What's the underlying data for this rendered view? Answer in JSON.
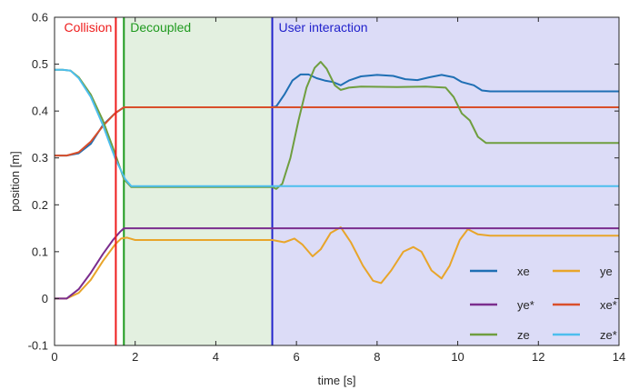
{
  "chart_data": {
    "type": "line",
    "xlabel": "time [s]",
    "ylabel": "position [m]",
    "xlim": [
      0,
      14
    ],
    "ylim": [
      -0.1,
      0.6
    ],
    "xticks": [
      "0",
      "2",
      "4",
      "6",
      "8",
      "10",
      "12",
      "14"
    ],
    "yticks": [
      "-0.1",
      "0",
      "0.1",
      "0.2",
      "0.3",
      "0.4",
      "0.5",
      "0.6"
    ],
    "grid": false,
    "legend_position": "bottom-right",
    "regions": [
      {
        "label": "Decoupled",
        "x0": 1.72,
        "x1": 5.4,
        "fill": "#e3f0e0",
        "line_color": "#1f9a1f"
      },
      {
        "label": "User interaction",
        "x0": 5.4,
        "x1": 14,
        "fill": "#dcdcf7",
        "line_color": "#2222cc"
      }
    ],
    "markers": [
      {
        "label": "Collision",
        "x": 1.52,
        "color": "#ee1c1c"
      }
    ],
    "series": [
      {
        "name": "xe",
        "color": "#1f6fb4",
        "points": [
          [
            0,
            0.305
          ],
          [
            0.3,
            0.305
          ],
          [
            0.6,
            0.31
          ],
          [
            0.9,
            0.33
          ],
          [
            1.2,
            0.37
          ],
          [
            1.5,
            0.395
          ],
          [
            1.72,
            0.408
          ],
          [
            5.4,
            0.408
          ],
          [
            5.5,
            0.41
          ],
          [
            5.7,
            0.435
          ],
          [
            5.9,
            0.465
          ],
          [
            6.1,
            0.478
          ],
          [
            6.3,
            0.478
          ],
          [
            6.5,
            0.47
          ],
          [
            6.7,
            0.465
          ],
          [
            6.9,
            0.462
          ],
          [
            7.1,
            0.455
          ],
          [
            7.3,
            0.465
          ],
          [
            7.6,
            0.474
          ],
          [
            8.0,
            0.477
          ],
          [
            8.4,
            0.475
          ],
          [
            8.7,
            0.468
          ],
          [
            9.0,
            0.466
          ],
          [
            9.3,
            0.472
          ],
          [
            9.6,
            0.477
          ],
          [
            9.9,
            0.472
          ],
          [
            10.1,
            0.462
          ],
          [
            10.4,
            0.455
          ],
          [
            10.6,
            0.444
          ],
          [
            10.8,
            0.442
          ],
          [
            14,
            0.442
          ]
        ]
      },
      {
        "name": "ye",
        "color": "#e8a52a",
        "points": [
          [
            0,
            0.0
          ],
          [
            0.3,
            0.0
          ],
          [
            0.6,
            0.012
          ],
          [
            0.9,
            0.04
          ],
          [
            1.2,
            0.08
          ],
          [
            1.5,
            0.115
          ],
          [
            1.65,
            0.128
          ],
          [
            1.8,
            0.13
          ],
          [
            2.0,
            0.125
          ],
          [
            5.4,
            0.125
          ],
          [
            5.7,
            0.12
          ],
          [
            5.95,
            0.128
          ],
          [
            6.15,
            0.115
          ],
          [
            6.4,
            0.09
          ],
          [
            6.6,
            0.105
          ],
          [
            6.85,
            0.14
          ],
          [
            7.1,
            0.152
          ],
          [
            7.35,
            0.12
          ],
          [
            7.65,
            0.07
          ],
          [
            7.9,
            0.038
          ],
          [
            8.1,
            0.033
          ],
          [
            8.35,
            0.06
          ],
          [
            8.65,
            0.1
          ],
          [
            8.9,
            0.11
          ],
          [
            9.1,
            0.1
          ],
          [
            9.35,
            0.06
          ],
          [
            9.6,
            0.043
          ],
          [
            9.8,
            0.07
          ],
          [
            10.05,
            0.125
          ],
          [
            10.25,
            0.148
          ],
          [
            10.5,
            0.137
          ],
          [
            10.8,
            0.134
          ],
          [
            14,
            0.134
          ]
        ]
      },
      {
        "name": "ye*",
        "color": "#7b2d8e",
        "points": [
          [
            0,
            0.0
          ],
          [
            0.3,
            0.0
          ],
          [
            0.6,
            0.02
          ],
          [
            0.9,
            0.055
          ],
          [
            1.2,
            0.095
          ],
          [
            1.45,
            0.125
          ],
          [
            1.62,
            0.142
          ],
          [
            1.72,
            0.15
          ],
          [
            14,
            0.15
          ]
        ]
      },
      {
        "name": "xe*",
        "color": "#d94f2b",
        "points": [
          [
            0,
            0.305
          ],
          [
            0.3,
            0.305
          ],
          [
            0.6,
            0.312
          ],
          [
            0.9,
            0.335
          ],
          [
            1.2,
            0.368
          ],
          [
            1.5,
            0.395
          ],
          [
            1.72,
            0.408
          ],
          [
            14,
            0.408
          ]
        ]
      },
      {
        "name": "ze",
        "color": "#6f9e3f",
        "points": [
          [
            0,
            0.488
          ],
          [
            0.2,
            0.488
          ],
          [
            0.4,
            0.486
          ],
          [
            0.6,
            0.472
          ],
          [
            0.9,
            0.435
          ],
          [
            1.2,
            0.38
          ],
          [
            1.5,
            0.31
          ],
          [
            1.72,
            0.255
          ],
          [
            1.9,
            0.238
          ],
          [
            5.4,
            0.238
          ],
          [
            5.5,
            0.234
          ],
          [
            5.65,
            0.245
          ],
          [
            5.85,
            0.3
          ],
          [
            6.05,
            0.38
          ],
          [
            6.25,
            0.45
          ],
          [
            6.45,
            0.492
          ],
          [
            6.6,
            0.505
          ],
          [
            6.75,
            0.49
          ],
          [
            6.95,
            0.455
          ],
          [
            7.1,
            0.445
          ],
          [
            7.3,
            0.45
          ],
          [
            7.6,
            0.452
          ],
          [
            8.5,
            0.451
          ],
          [
            9.2,
            0.452
          ],
          [
            9.7,
            0.45
          ],
          [
            9.9,
            0.43
          ],
          [
            10.1,
            0.395
          ],
          [
            10.3,
            0.38
          ],
          [
            10.5,
            0.345
          ],
          [
            10.7,
            0.332
          ],
          [
            14,
            0.332
          ]
        ]
      },
      {
        "name": "ze*",
        "color": "#4dbeee",
        "points": [
          [
            0,
            0.488
          ],
          [
            0.2,
            0.488
          ],
          [
            0.4,
            0.486
          ],
          [
            0.6,
            0.47
          ],
          [
            0.9,
            0.43
          ],
          [
            1.2,
            0.37
          ],
          [
            1.5,
            0.3
          ],
          [
            1.75,
            0.255
          ],
          [
            1.9,
            0.24
          ],
          [
            14,
            0.24
          ]
        ]
      }
    ]
  }
}
